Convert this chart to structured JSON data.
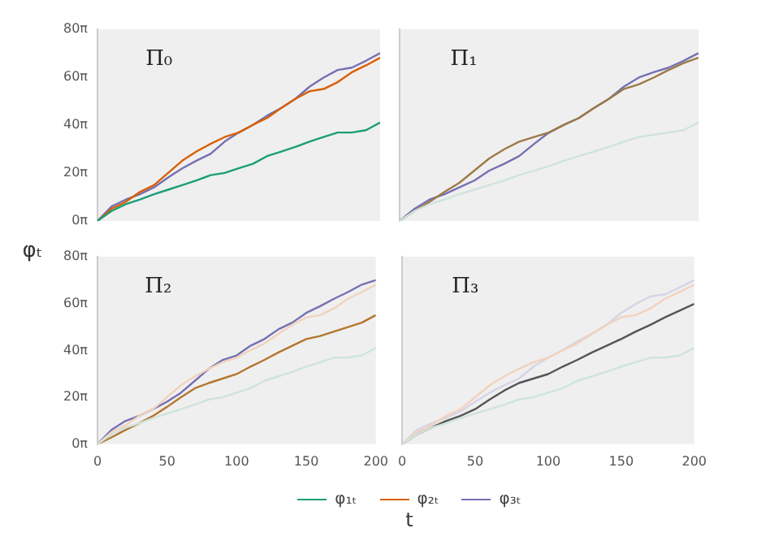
{
  "chart_data": [
    {
      "type": "line",
      "title": "Π₀",
      "ylabel": "φₜ",
      "legend": "bottom",
      "tick_labels": "y",
      "x": [
        0,
        10,
        20,
        30,
        40,
        50,
        60,
        70,
        80,
        90,
        100,
        110,
        120,
        130,
        140,
        150,
        160,
        170,
        180,
        190,
        200
      ],
      "xlim": [
        0,
        200
      ],
      "ylim": [
        0,
        251.33
      ],
      "yticks": [
        {
          "value": 0,
          "label": "0π"
        },
        {
          "value": 62.83,
          "label": "20π"
        },
        {
          "value": 125.66,
          "label": "40π"
        },
        {
          "value": 188.5,
          "label": "60π"
        },
        {
          "value": 251.33,
          "label": "80π"
        }
      ],
      "series": [
        {
          "name": "φ₁ₜ",
          "color": "#1b9e77",
          "values": [
            0,
            13,
            22,
            28,
            35,
            41,
            47,
            53,
            60,
            63,
            69,
            75,
            85,
            91,
            97,
            104,
            110,
            116,
            116,
            119,
            129
          ]
        },
        {
          "name": "φ₂ₜ",
          "color": "#d95f02",
          "values": [
            0,
            16,
            25,
            38,
            47,
            63,
            79,
            91,
            101,
            110,
            116,
            126,
            135,
            148,
            160,
            170,
            173,
            182,
            195,
            204,
            214
          ]
        },
        {
          "name": "φ₃ₜ",
          "color": "#7570b3",
          "values": [
            0,
            19,
            28,
            35,
            44,
            57,
            69,
            79,
            88,
            104,
            116,
            126,
            138,
            148,
            160,
            176,
            188,
            198,
            201,
            210,
            220
          ]
        }
      ]
    },
    {
      "type": "line",
      "title": "Π₁",
      "tick_labels": false,
      "x": [
        0,
        10,
        20,
        30,
        40,
        50,
        60,
        70,
        80,
        90,
        100,
        110,
        120,
        130,
        140,
        150,
        160,
        170,
        180,
        190,
        200
      ],
      "xlim": [
        0,
        200
      ],
      "ylim": [
        0,
        251.33
      ],
      "series": [
        {
          "color": "#cfe3dc",
          "values": [
            0,
            13,
            22,
            28,
            35,
            41,
            47,
            53,
            60,
            66,
            72,
            79,
            85,
            91,
            97,
            104,
            110,
            113,
            116,
            119,
            129
          ]
        },
        {
          "color": "#9c7a45",
          "values": [
            0,
            13,
            25,
            38,
            50,
            66,
            82,
            94,
            104,
            110,
            116,
            126,
            135,
            148,
            160,
            173,
            179,
            188,
            198,
            207,
            214
          ]
        },
        {
          "color": "#7570b3",
          "values": [
            0,
            16,
            28,
            35,
            44,
            53,
            66,
            75,
            85,
            101,
            116,
            126,
            135,
            148,
            160,
            176,
            188,
            195,
            201,
            210,
            220
          ]
        }
      ]
    },
    {
      "type": "line",
      "title": "Π₂",
      "xlabel": "t",
      "x": [
        0,
        10,
        20,
        30,
        40,
        50,
        60,
        70,
        80,
        90,
        100,
        110,
        120,
        130,
        140,
        150,
        160,
        170,
        180,
        190,
        200
      ],
      "xlim": [
        0,
        200
      ],
      "ylim": [
        0,
        251.33
      ],
      "yticks": [
        {
          "value": 0,
          "label": "0π"
        },
        {
          "value": 62.83,
          "label": "20π"
        },
        {
          "value": 125.66,
          "label": "40π"
        },
        {
          "value": 188.5,
          "label": "60π"
        },
        {
          "value": 251.33,
          "label": "80π"
        }
      ],
      "xticks": [
        0,
        50,
        100,
        150,
        200
      ],
      "series": [
        {
          "color": "#cfe3dc",
          "values": [
            0,
            13,
            22,
            28,
            35,
            41,
            47,
            53,
            60,
            63,
            69,
            75,
            85,
            91,
            97,
            104,
            110,
            116,
            116,
            119,
            129
          ]
        },
        {
          "color": "#f2d2bd",
          "values": [
            0,
            16,
            25,
            38,
            47,
            63,
            79,
            91,
            101,
            110,
            116,
            126,
            135,
            148,
            160,
            170,
            173,
            182,
            195,
            204,
            214
          ]
        },
        {
          "color": "#b5762e",
          "values": [
            0,
            9,
            19,
            28,
            38,
            50,
            63,
            75,
            82,
            88,
            94,
            104,
            113,
            123,
            132,
            141,
            145,
            151,
            157,
            163,
            173
          ]
        },
        {
          "color": "#7570b3",
          "values": [
            0,
            19,
            31,
            38,
            47,
            57,
            69,
            85,
            101,
            113,
            119,
            132,
            141,
            154,
            163,
            176,
            185,
            195,
            204,
            214,
            220
          ]
        }
      ]
    },
    {
      "type": "line",
      "title": "Π₃",
      "tick_labels": "x",
      "x": [
        0,
        10,
        20,
        30,
        40,
        50,
        60,
        70,
        80,
        90,
        100,
        110,
        120,
        130,
        140,
        150,
        160,
        170,
        180,
        190,
        200
      ],
      "xlim": [
        0,
        200
      ],
      "ylim": [
        0,
        251.33
      ],
      "xticks": [
        0,
        50,
        100,
        150,
        200
      ],
      "series": [
        {
          "color": "#cfe3dc",
          "values": [
            0,
            13,
            22,
            28,
            35,
            41,
            47,
            53,
            60,
            63,
            69,
            75,
            85,
            91,
            97,
            104,
            110,
            116,
            116,
            119,
            129
          ]
        },
        {
          "color": "#f2d2bd",
          "values": [
            0,
            16,
            25,
            38,
            47,
            63,
            79,
            91,
            101,
            110,
            116,
            126,
            135,
            148,
            160,
            170,
            173,
            182,
            195,
            204,
            214
          ]
        },
        {
          "color": "#d6d4e6",
          "values": [
            0,
            19,
            28,
            35,
            44,
            57,
            69,
            79,
            88,
            104,
            116,
            126,
            138,
            148,
            160,
            176,
            188,
            198,
            201,
            210,
            220
          ]
        },
        {
          "color": "#555555",
          "values": [
            0,
            13,
            22,
            31,
            38,
            47,
            60,
            72,
            82,
            88,
            94,
            104,
            113,
            123,
            132,
            141,
            151,
            160,
            170,
            179,
            188
          ]
        }
      ]
    }
  ]
}
